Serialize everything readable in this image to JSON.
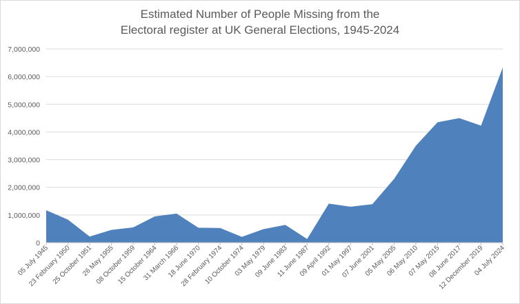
{
  "chart_data": {
    "type": "area",
    "title_line1": "Estimated Number of People Missing from the",
    "title_line2": "Electoral register at UK General Elections, 1945-2024",
    "xlabel": "",
    "ylabel": "",
    "ylim": [
      0,
      7000000
    ],
    "yticks": [
      0,
      1000000,
      2000000,
      3000000,
      4000000,
      5000000,
      6000000,
      7000000
    ],
    "ytick_labels": [
      "0",
      "1,000,000",
      "2,000,000",
      "3,000,000",
      "4,000,000",
      "5,000,000",
      "6,000,000",
      "7,000,000"
    ],
    "grid": true,
    "legend": "none",
    "colors": {
      "fill": "#4f81bd",
      "grid": "#d9d9d9"
    },
    "categories": [
      "05 July 1945",
      "23 February 1950",
      "25 October 1951",
      "26 May 1955",
      "08 October 1959",
      "15 October 1964",
      "31 March 1966",
      "18 June 1970",
      "28 February 1974",
      "10 October 1974",
      "03 May 1979",
      "09 June 1983",
      "11 June 1987",
      "09 April 1992",
      "01 May 1997",
      "07 June 2001",
      "05 May 2005",
      "06 May 2010",
      "07 May 2015",
      "08 June 2017",
      "12 December 2019",
      "04 July 2024"
    ],
    "values": [
      1170000,
      830000,
      220000,
      460000,
      550000,
      950000,
      1050000,
      540000,
      530000,
      210000,
      490000,
      640000,
      130000,
      1410000,
      1300000,
      1390000,
      2300000,
      3500000,
      4350000,
      4500000,
      4230000,
      6330000
    ]
  }
}
